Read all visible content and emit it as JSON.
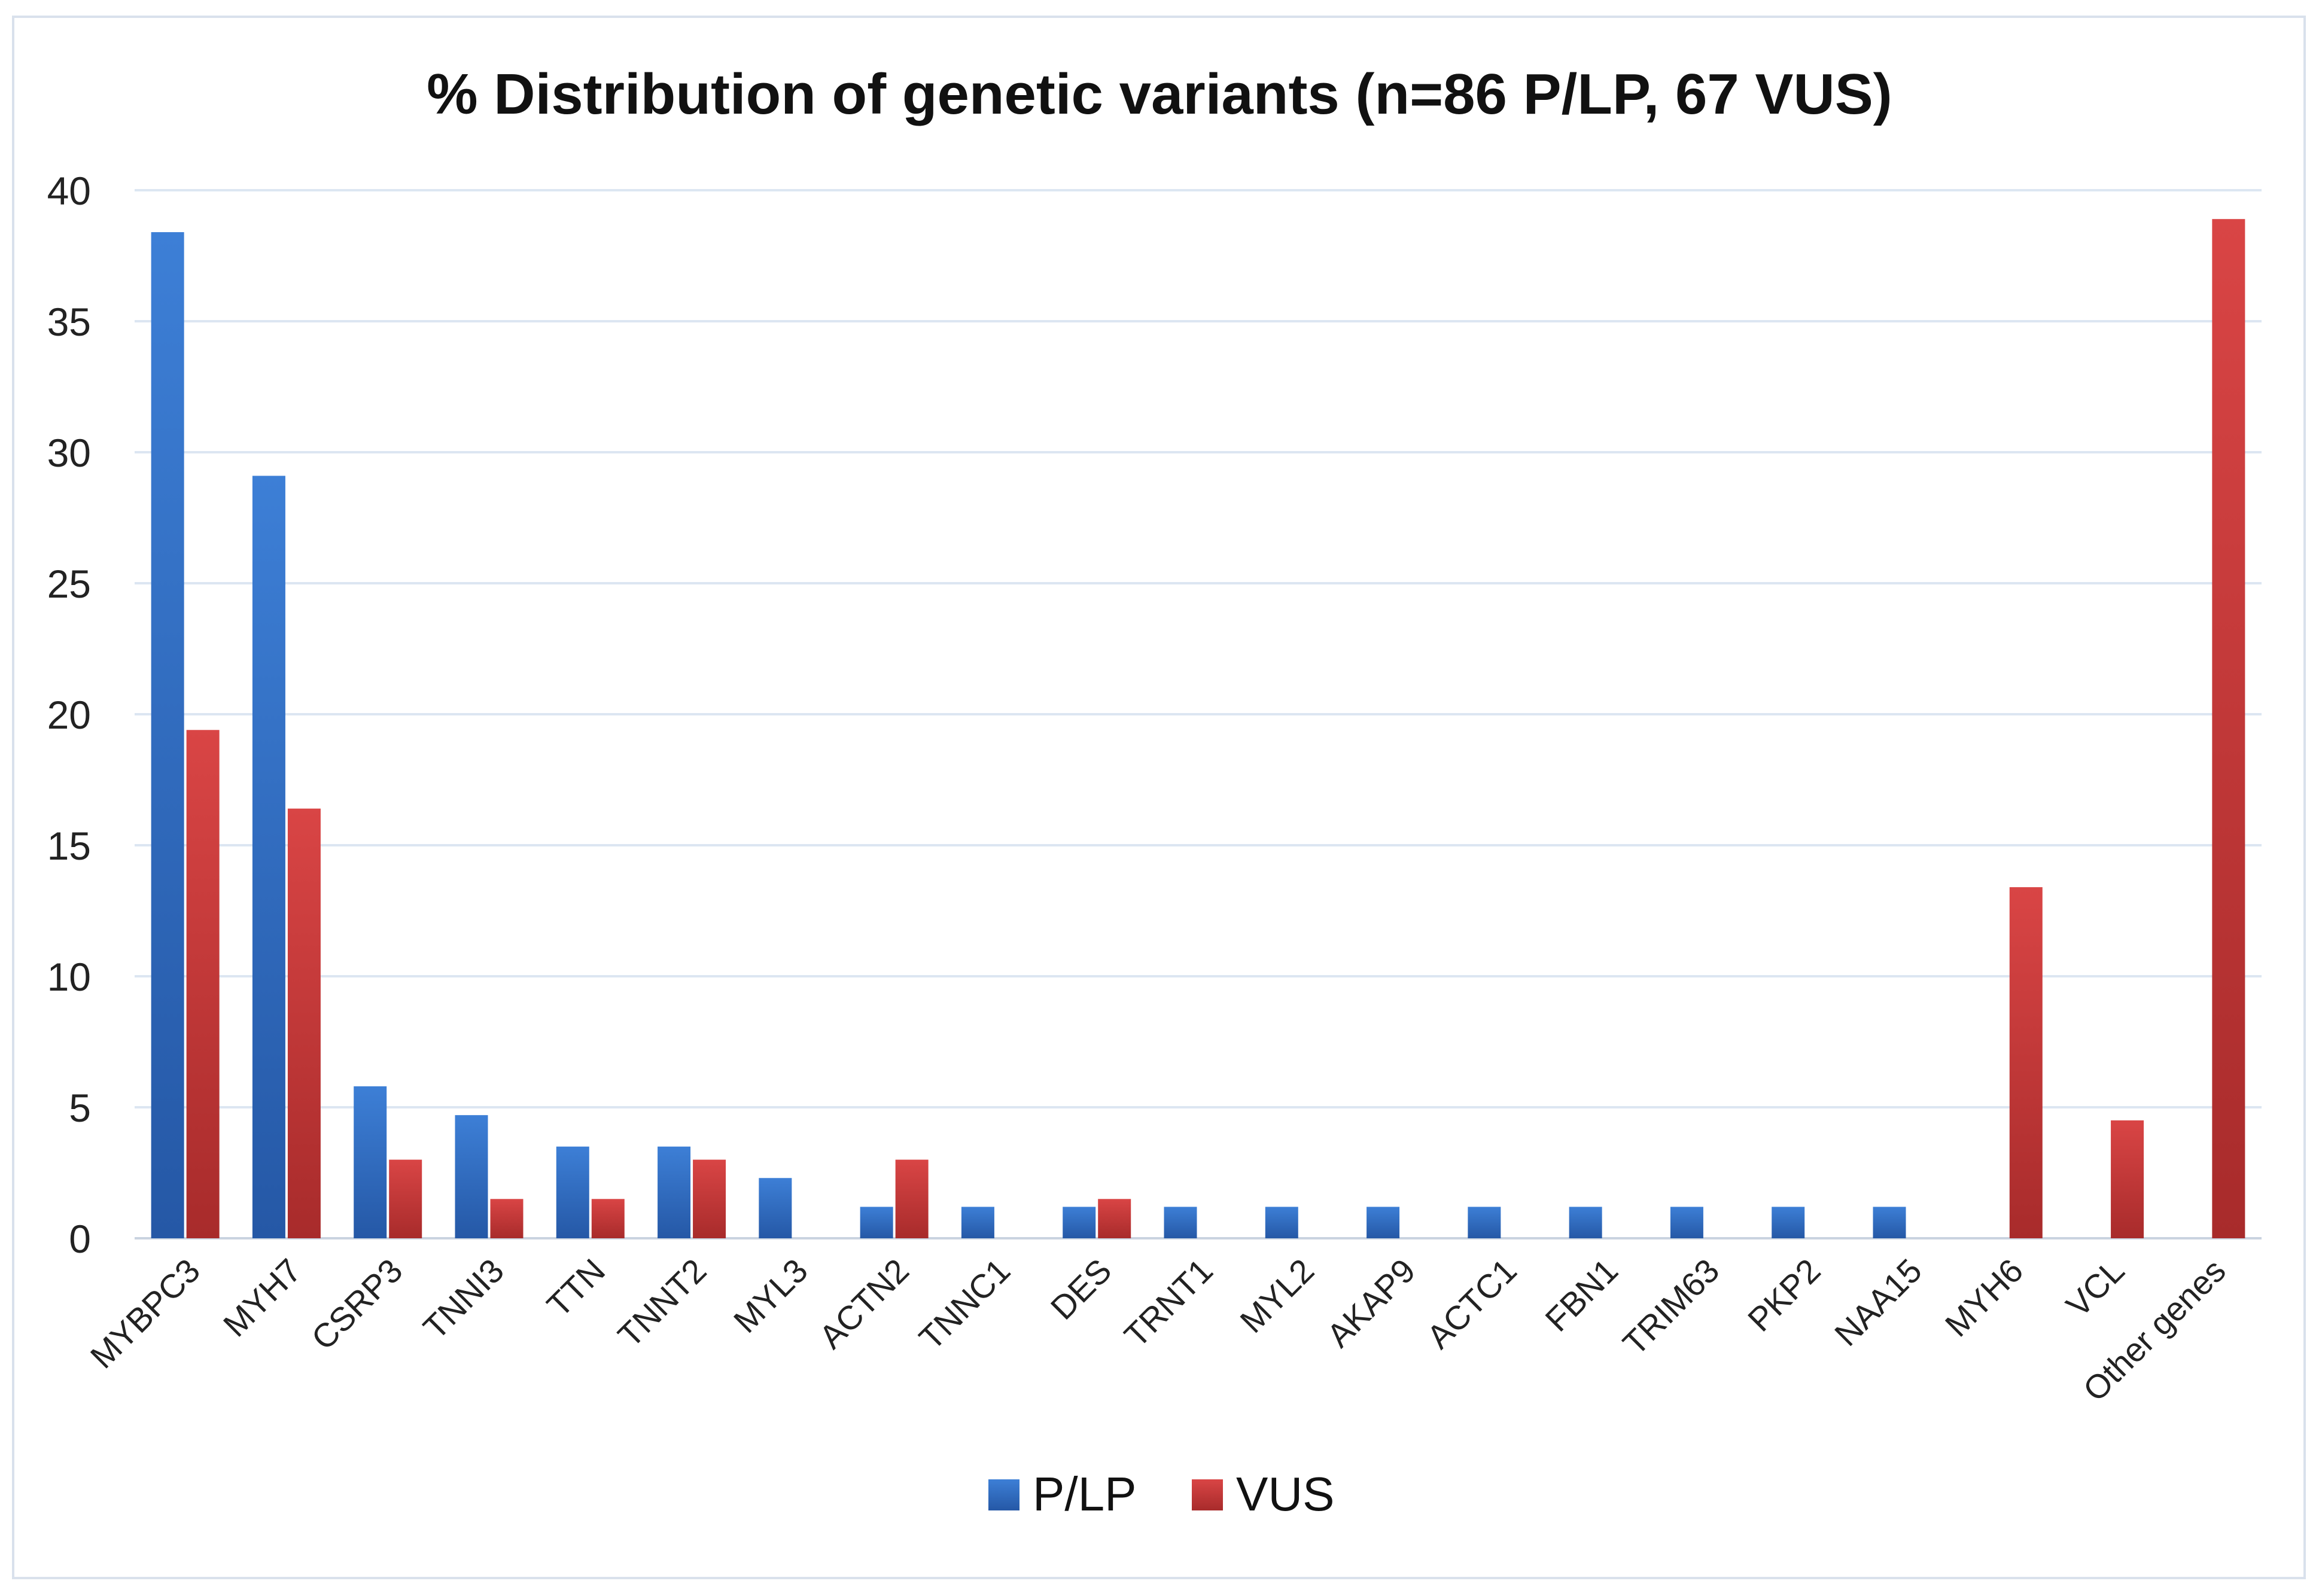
{
  "chart_data": {
    "type": "bar",
    "title": "% Distribution of genetic variants (n=86 P/LP, 67 VUS)",
    "xlabel": "",
    "ylabel": "",
    "ylim": [
      0,
      40
    ],
    "yticks": [
      0,
      5,
      10,
      15,
      20,
      25,
      30,
      35,
      40
    ],
    "grid": true,
    "legend_position": "bottom",
    "categories": [
      "MYBPC3",
      "MYH7",
      "CSRP3",
      "TNNI3",
      "TTN",
      "TNNT2",
      "MYL3",
      "ACTN2",
      "TNNC1",
      "DES",
      "TRNT1",
      "MYL2",
      "AKAP9",
      "ACTC1",
      "FBN1",
      "TRIM63",
      "PKP2",
      "NAA15",
      "MYH6",
      "VCL",
      "Other genes"
    ],
    "series": [
      {
        "name": "P/LP",
        "color": "#2e6bc4",
        "values": [
          38.4,
          29.1,
          5.8,
          4.7,
          3.5,
          3.5,
          2.3,
          1.2,
          1.2,
          1.2,
          1.2,
          1.2,
          1.2,
          1.2,
          1.2,
          1.2,
          1.2,
          1.2,
          0,
          0,
          0
        ]
      },
      {
        "name": "VUS",
        "color": "#c93a3a",
        "values": [
          19.4,
          16.4,
          3.0,
          1.5,
          1.5,
          3.0,
          0,
          3.0,
          0,
          1.5,
          0,
          0,
          0,
          0,
          0,
          0,
          0,
          0,
          13.4,
          4.5,
          38.9
        ]
      }
    ]
  }
}
